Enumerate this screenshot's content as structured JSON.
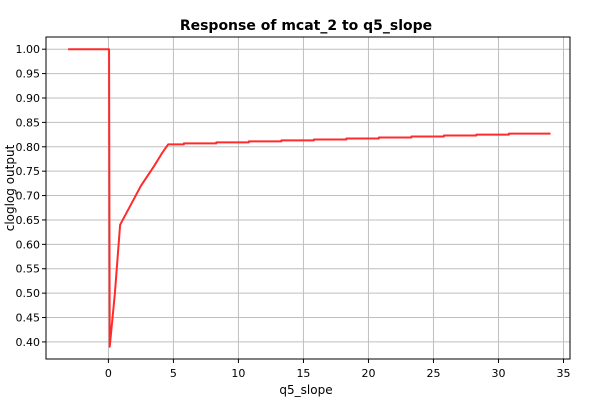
{
  "chart_data": {
    "type": "line",
    "title": "Response of mcat_2 to q5_slope",
    "xlabel": "q5_slope",
    "ylabel": "cloglog output",
    "xlim": [
      -4.8,
      35.5
    ],
    "ylim": [
      0.365,
      1.025
    ],
    "xticks": [
      0,
      5,
      10,
      15,
      20,
      25,
      30,
      35
    ],
    "yticks": [
      0.4,
      0.45,
      0.5,
      0.55,
      0.6,
      0.65,
      0.7,
      0.75,
      0.8,
      0.85,
      0.9,
      0.95,
      1.0
    ],
    "grid": true,
    "colors": {
      "line": "#ff2b2b",
      "grid": "#bfbfbf",
      "axis": "#000000"
    },
    "series": [
      {
        "points": [
          [
            -3.1,
            1.0
          ],
          [
            0.05,
            1.0
          ],
          [
            0.1,
            0.39
          ],
          [
            0.5,
            0.5
          ],
          [
            0.9,
            0.64
          ],
          [
            1.5,
            0.67
          ],
          [
            2.5,
            0.72
          ],
          [
            3.5,
            0.76
          ],
          [
            4.2,
            0.79
          ],
          [
            4.6,
            0.805
          ],
          [
            5.8,
            0.805
          ],
          [
            5.8,
            0.807
          ],
          [
            8.3,
            0.807
          ],
          [
            8.3,
            0.809
          ],
          [
            10.8,
            0.809
          ],
          [
            10.8,
            0.811
          ],
          [
            13.3,
            0.811
          ],
          [
            13.3,
            0.813
          ],
          [
            15.8,
            0.813
          ],
          [
            15.8,
            0.815
          ],
          [
            18.3,
            0.815
          ],
          [
            18.3,
            0.817
          ],
          [
            20.8,
            0.817
          ],
          [
            20.8,
            0.819
          ],
          [
            23.3,
            0.819
          ],
          [
            23.3,
            0.821
          ],
          [
            25.8,
            0.821
          ],
          [
            25.8,
            0.823
          ],
          [
            28.3,
            0.823
          ],
          [
            28.3,
            0.825
          ],
          [
            30.8,
            0.825
          ],
          [
            30.8,
            0.827
          ],
          [
            34.0,
            0.827
          ]
        ]
      }
    ]
  }
}
